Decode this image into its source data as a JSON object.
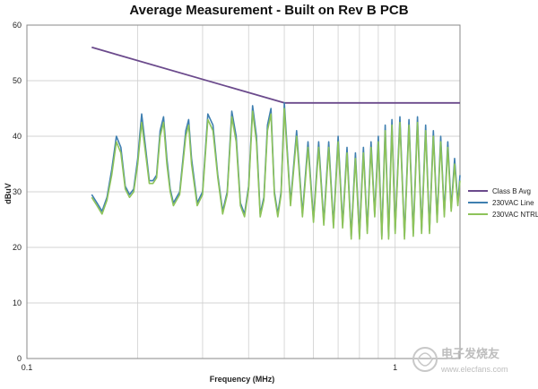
{
  "chart_data": {
    "type": "line",
    "title": "Average Measurement - Built on Rev B PCB",
    "xlabel": "Frequency (MHz)",
    "ylabel": "dBuV",
    "x_scale": "log",
    "xlim": [
      0.1,
      1.5
    ],
    "ylim": [
      0,
      60
    ],
    "x_ticks": [
      0.1,
      1
    ],
    "x_tick_labels": [
      "0.1",
      "1"
    ],
    "y_ticks": [
      0,
      10,
      20,
      30,
      40,
      50,
      60
    ],
    "y_tick_labels": [
      "0",
      "10",
      "20",
      "30",
      "40",
      "50",
      "60"
    ],
    "grid": true,
    "legend_position": "right",
    "series": [
      {
        "name": "Class B Avg",
        "color": "#6b4a8c",
        "x": [
          0.15,
          0.5,
          1.5
        ],
        "values": [
          56,
          46,
          46
        ]
      },
      {
        "name": "230VAC Line",
        "color": "#3f7fb0",
        "x": [
          0.15,
          0.155,
          0.16,
          0.165,
          0.17,
          0.175,
          0.18,
          0.185,
          0.19,
          0.195,
          0.2,
          0.205,
          0.21,
          0.215,
          0.22,
          0.225,
          0.23,
          0.235,
          0.24,
          0.245,
          0.25,
          0.26,
          0.27,
          0.275,
          0.28,
          0.29,
          0.3,
          0.31,
          0.32,
          0.33,
          0.34,
          0.35,
          0.36,
          0.37,
          0.38,
          0.39,
          0.4,
          0.41,
          0.42,
          0.43,
          0.44,
          0.45,
          0.46,
          0.47,
          0.48,
          0.49,
          0.5,
          0.52,
          0.54,
          0.56,
          0.58,
          0.6,
          0.62,
          0.64,
          0.66,
          0.68,
          0.7,
          0.72,
          0.74,
          0.76,
          0.78,
          0.8,
          0.82,
          0.84,
          0.86,
          0.88,
          0.9,
          0.92,
          0.94,
          0.96,
          0.98,
          1.0,
          1.03,
          1.06,
          1.09,
          1.12,
          1.15,
          1.18,
          1.21,
          1.24,
          1.27,
          1.3,
          1.33,
          1.36,
          1.39,
          1.42,
          1.45,
          1.48,
          1.5
        ],
        "values": [
          29.5,
          28,
          26.5,
          29,
          34,
          40,
          38,
          31,
          29.5,
          30.5,
          36,
          44,
          38,
          32,
          32,
          33,
          41,
          43.5,
          36,
          30.5,
          28,
          30,
          41,
          43,
          36,
          28,
          30,
          44,
          42,
          33,
          26.5,
          30,
          44.5,
          40,
          28,
          26,
          31,
          45.5,
          40,
          26,
          29,
          42,
          45,
          30,
          26,
          30,
          46,
          28,
          41,
          26,
          39,
          25,
          39,
          24.5,
          39,
          24,
          40,
          24,
          38,
          22,
          37,
          22,
          38,
          23,
          39,
          26,
          40,
          22,
          42,
          22,
          43,
          23,
          43.5,
          22,
          43,
          22.5,
          43.5,
          23,
          42,
          23,
          41,
          25,
          40,
          26,
          39,
          27,
          36,
          28,
          33
        ]
      },
      {
        "name": "230VAC NTRL",
        "color": "#8dc35a",
        "x": [
          0.15,
          0.155,
          0.16,
          0.165,
          0.17,
          0.175,
          0.18,
          0.185,
          0.19,
          0.195,
          0.2,
          0.205,
          0.21,
          0.215,
          0.22,
          0.225,
          0.23,
          0.235,
          0.24,
          0.245,
          0.25,
          0.26,
          0.27,
          0.275,
          0.28,
          0.29,
          0.3,
          0.31,
          0.32,
          0.33,
          0.34,
          0.35,
          0.36,
          0.37,
          0.38,
          0.39,
          0.4,
          0.41,
          0.42,
          0.43,
          0.44,
          0.45,
          0.46,
          0.47,
          0.48,
          0.49,
          0.5,
          0.52,
          0.54,
          0.56,
          0.58,
          0.6,
          0.62,
          0.64,
          0.66,
          0.68,
          0.7,
          0.72,
          0.74,
          0.76,
          0.78,
          0.8,
          0.82,
          0.84,
          0.86,
          0.88,
          0.9,
          0.92,
          0.94,
          0.96,
          0.98,
          1.0,
          1.03,
          1.06,
          1.09,
          1.12,
          1.15,
          1.18,
          1.21,
          1.24,
          1.27,
          1.3,
          1.33,
          1.36,
          1.39,
          1.42,
          1.45,
          1.48,
          1.5
        ],
        "values": [
          29,
          27.5,
          26,
          28.5,
          33,
          39,
          37,
          30.5,
          29,
          30,
          35,
          42.5,
          37,
          31.5,
          31.5,
          32.5,
          40,
          42.5,
          35,
          30,
          27.5,
          29.5,
          40,
          42,
          35,
          27.5,
          29.5,
          43,
          41,
          32.5,
          26,
          29.5,
          43.5,
          39,
          27.5,
          25.5,
          30.5,
          44.5,
          39,
          25.5,
          28.5,
          41,
          44,
          29.5,
          25.5,
          29.5,
          45,
          27.5,
          40,
          25.5,
          38,
          24.5,
          38,
          24,
          38,
          23.5,
          39,
          23.5,
          37,
          21.5,
          36,
          21.5,
          37,
          22.5,
          38,
          25.5,
          39,
          21.5,
          41,
          21.5,
          42,
          22.5,
          42.5,
          21.5,
          42,
          22,
          42.5,
          22.5,
          41,
          22.5,
          40,
          24.5,
          39,
          25.5,
          38,
          26.5,
          35,
          27.5,
          32
        ]
      }
    ]
  },
  "watermark": {
    "line1": "电子发烧友",
    "line2": "www.elecfans.com"
  }
}
